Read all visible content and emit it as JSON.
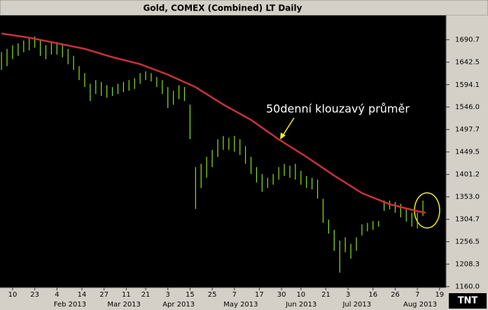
{
  "chart_data": {
    "type": "range",
    "title": "Gold, COMEX (Combined) LT Daily",
    "annotation": "50denní klouzavý průměr",
    "logo": "TNT",
    "color": "#8fe01e",
    "x": [
      2,
      4,
      6,
      8,
      10,
      12,
      14,
      16,
      18,
      20,
      22,
      24,
      26,
      28,
      30,
      32,
      34,
      36,
      38,
      40,
      42,
      44,
      46,
      48,
      50,
      52,
      54,
      56,
      58,
      60,
      62,
      64,
      66,
      68,
      70,
      72,
      74,
      76,
      78,
      80,
      82,
      84,
      86,
      88,
      90,
      92,
      94,
      96,
      98,
      100,
      102,
      104,
      106,
      108,
      110,
      112,
      114,
      116,
      118,
      120,
      122,
      124,
      126,
      128,
      130,
      132,
      134,
      136,
      138,
      140,
      142,
      144,
      146,
      148,
      150,
      152,
      154
    ],
    "high": [
      1664,
      1671,
      1679,
      1683,
      1689,
      1694,
      1698,
      1689,
      1679,
      1686,
      1686,
      1683,
      1671,
      1656,
      1634,
      1619,
      1596,
      1604,
      1600,
      1593,
      1589,
      1596,
      1600,
      1604,
      1608,
      1619,
      1623,
      1619,
      1611,
      1604,
      1589,
      1581,
      1593,
      1589,
      1551,
      1417,
      1424,
      1439,
      1454,
      1477,
      1484,
      1480,
      1484,
      1477,
      1462,
      1439,
      1417,
      1402,
      1394,
      1402,
      1417,
      1424,
      1420,
      1424,
      1409,
      1398,
      1394,
      1390,
      1349,
      1304,
      1282,
      1259,
      1266,
      1252,
      1266,
      1294,
      1297,
      1301,
      1301,
      1345,
      1345,
      1342,
      1338,
      1330,
      1319,
      1319,
      1345
    ],
    "low": [
      1626,
      1634,
      1649,
      1656,
      1664,
      1668,
      1674,
      1656,
      1649,
      1659,
      1659,
      1653,
      1638,
      1626,
      1604,
      1589,
      1559,
      1574,
      1570,
      1566,
      1570,
      1574,
      1578,
      1581,
      1585,
      1596,
      1604,
      1601,
      1589,
      1574,
      1544,
      1551,
      1563,
      1559,
      1477,
      1327,
      1372,
      1394,
      1417,
      1439,
      1454,
      1454,
      1450,
      1443,
      1424,
      1402,
      1384,
      1364,
      1372,
      1379,
      1390,
      1398,
      1394,
      1390,
      1379,
      1372,
      1369,
      1349,
      1297,
      1274,
      1237,
      1190,
      1234,
      1220,
      1237,
      1270,
      1279,
      1282,
      1289,
      1323,
      1326,
      1319,
      1309,
      1300,
      1289,
      1285,
      1312
    ],
    "ma": {
      "color": "#c8323c",
      "x": [
        2,
        12,
        22,
        32,
        42,
        52,
        62,
        72,
        82,
        92,
        102,
        112,
        122,
        132,
        142,
        152,
        155
      ],
      "values": [
        1704.2,
        1695.2,
        1683.2,
        1671.2,
        1653.3,
        1638.3,
        1615.8,
        1588.8,
        1551.4,
        1518.4,
        1476.5,
        1439.0,
        1398.6,
        1361.1,
        1337.2,
        1322.2,
        1319.2
      ]
    },
    "xlim": [
      1.46,
      162.32
    ],
    "ylim": [
      1158,
      1743
    ],
    "xticks": [
      {
        "value": 6,
        "label": "10"
      },
      {
        "value": 14,
        "label": "23"
      },
      {
        "value": 22,
        "label": "4"
      },
      {
        "value": 31,
        "label": "14"
      },
      {
        "value": 39,
        "label": "27"
      },
      {
        "value": 47,
        "label": "11"
      },
      {
        "value": 54,
        "label": "21"
      },
      {
        "value": 62,
        "label": "3"
      },
      {
        "value": 70,
        "label": "15"
      },
      {
        "value": 78,
        "label": "25"
      },
      {
        "value": 86,
        "label": "7"
      },
      {
        "value": 95,
        "label": "17"
      },
      {
        "value": 103,
        "label": "30"
      },
      {
        "value": 110,
        "label": "10"
      },
      {
        "value": 119,
        "label": "21"
      },
      {
        "value": 127,
        "label": "3"
      },
      {
        "value": 136,
        "label": "16"
      },
      {
        "value": 144,
        "label": "26"
      },
      {
        "value": 152,
        "label": "7"
      },
      {
        "value": 160,
        "label": "19"
      }
    ],
    "month_labels": [
      {
        "value": 26.7,
        "label": "Feb 2013"
      },
      {
        "value": 46.2,
        "label": "Mar 2013"
      },
      {
        "value": 65.9,
        "label": "Apr 2013"
      },
      {
        "value": 88.3,
        "label": "May 2013"
      },
      {
        "value": 110.1,
        "label": "Jun 2013"
      },
      {
        "value": 130.2,
        "label": "Jul 2013"
      },
      {
        "value": 153,
        "label": "Aug 2013"
      }
    ],
    "yticks": [
      {
        "value": 1160,
        "label": "1160.0"
      },
      1208.3,
      1256.5,
      1304.7,
      {
        "value": 1353,
        "label": "1353.0"
      },
      1401.2,
      1449.5,
      1497.7,
      {
        "value": 1546,
        "label": "1546.0"
      },
      1594.1,
      1642.5,
      1690.7
    ]
  }
}
